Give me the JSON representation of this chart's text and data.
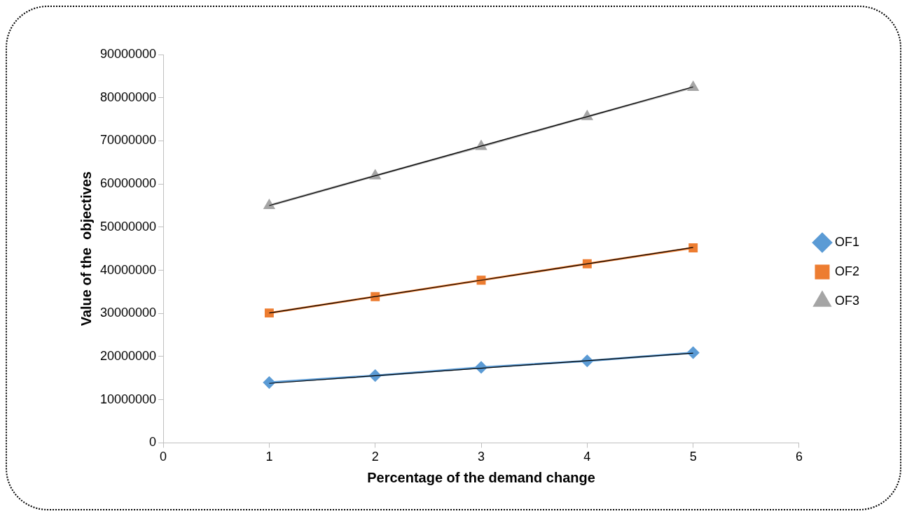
{
  "chart_data": {
    "type": "line",
    "xlabel": "Percentage of the demand change",
    "ylabel": "Value of the  objectives",
    "x": [
      1,
      2,
      3,
      4,
      5
    ],
    "series": [
      {
        "name": "OF1",
        "color": "#5b9bd5",
        "marker": "diamond",
        "values": [
          14000000,
          15600000,
          17500000,
          19000000,
          20900000
        ]
      },
      {
        "name": "OF2",
        "color": "#ed7d31",
        "marker": "square",
        "values": [
          30100000,
          33900000,
          37700000,
          41500000,
          45200000
        ]
      },
      {
        "name": "OF3",
        "color": "#a5a5a5",
        "marker": "triangle",
        "values": [
          55000000,
          61900000,
          68700000,
          75600000,
          82400000
        ]
      },
      {
        "type": "line",
        "color": "#000000",
        "marker": "none",
        "values": [
          13800000,
          15550000,
          17300000,
          19050000,
          20800000
        ]
      },
      {
        "type": "line",
        "color": "#000000",
        "marker": "none",
        "values": [
          30100000,
          33900000,
          37700000,
          41500000,
          45300000
        ]
      },
      {
        "type": "line",
        "color": "#000000",
        "marker": "none",
        "values": [
          55000000,
          61900000,
          68800000,
          75600000,
          82500000
        ]
      }
    ],
    "xlim": [
      0,
      6
    ],
    "xticks": [
      0,
      1,
      2,
      3,
      4,
      5,
      6
    ],
    "ylim": [
      0,
      90000000
    ],
    "yticks": [
      0,
      10000000,
      20000000,
      30000000,
      40000000,
      50000000,
      60000000,
      70000000,
      80000000,
      90000000
    ],
    "grid": false,
    "legend": "right"
  }
}
